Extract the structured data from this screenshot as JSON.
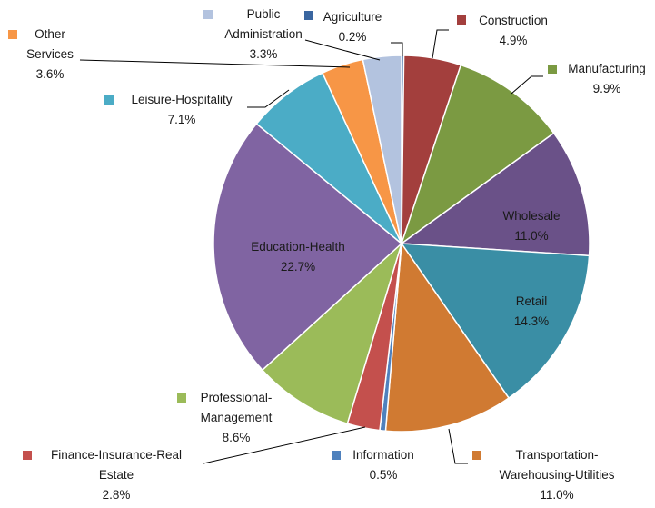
{
  "chart_data": {
    "type": "pie",
    "categories": [
      "Agriculture",
      "Construction",
      "Manufacturing",
      "Wholesale",
      "Retail",
      "Transportation-Warehousing-Utilities",
      "Information",
      "Finance-Insurance-Real Estate",
      "Professional-Management",
      "Education-Health",
      "Leisure-Hospitality",
      "Other Services",
      "Public Administration"
    ],
    "values": [
      0.2,
      4.9,
      9.9,
      11.0,
      14.3,
      11.0,
      0.5,
      2.8,
      8.6,
      22.7,
      7.1,
      3.6,
      3.3
    ],
    "value_labels": [
      "0.2%",
      "4.9%",
      "9.9%",
      "11.0%",
      "14.3%",
      "11.0%",
      "0.5%",
      "2.8%",
      "8.6%",
      "22.7%",
      "7.1%",
      "3.6%",
      "3.3%"
    ],
    "colors": [
      "#3a66a0",
      "#a33f3d",
      "#7b9a42",
      "#6a5188",
      "#3a8ea5",
      "#d07a32",
      "#4f81bd",
      "#c4504d",
      "#9bbb59",
      "#8064a2",
      "#4bacc6",
      "#f79646",
      "#b3c3df"
    ]
  }
}
